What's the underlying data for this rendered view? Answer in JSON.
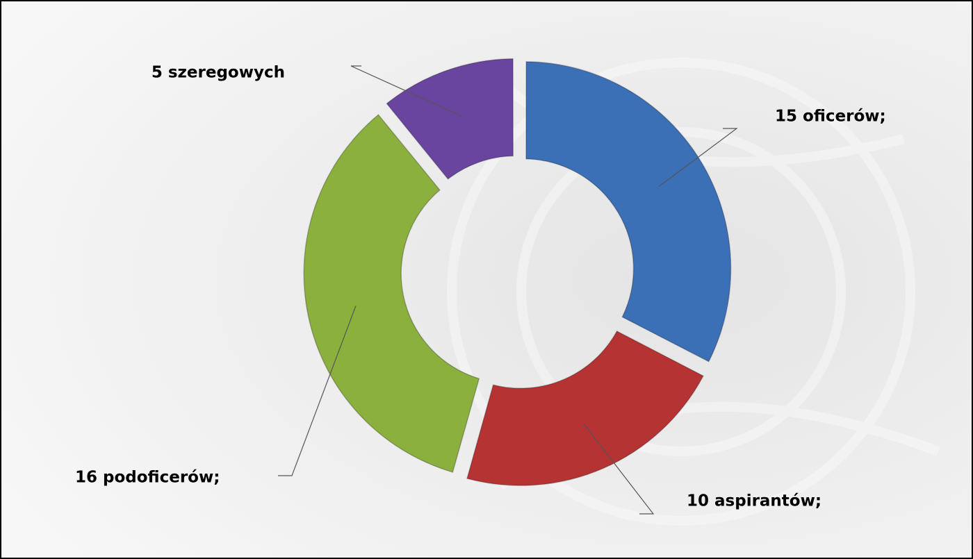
{
  "chart_data": {
    "type": "donut",
    "categories": [
      "oficerów",
      "aspirantów",
      "podoficerów",
      "szeregowych"
    ],
    "values": [
      15,
      10,
      16,
      5
    ],
    "value_labels": [
      "15 oficerów;",
      "10 aspirantów;",
      "16 podoficerów;",
      "5 szeregowych"
    ],
    "colors": [
      "#3b6fb6",
      "#b53333",
      "#8bb03e",
      "#6a45a0"
    ]
  }
}
